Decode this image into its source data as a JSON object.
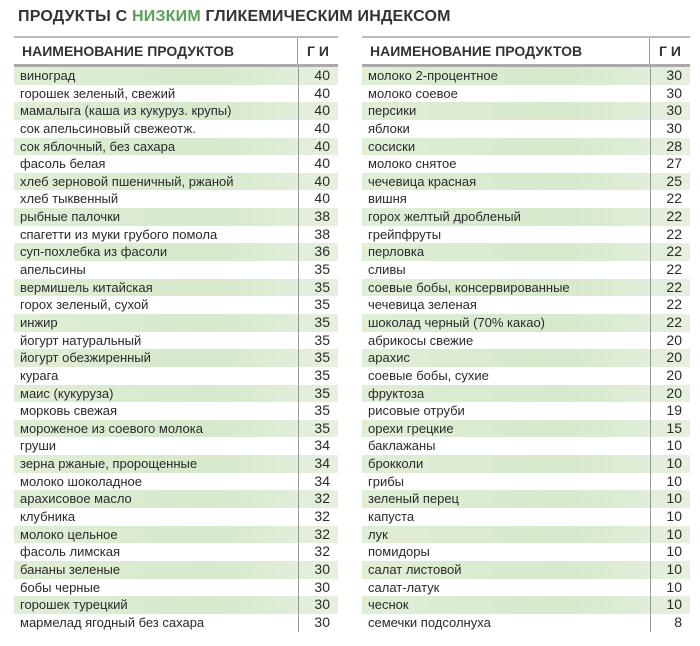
{
  "title": {
    "part1": "ПРОДУКТЫ С ",
    "highlight": "НИЗКИМ",
    "part2": " ГЛИКЕМИЧЕСКИМ ИНДЕКСОМ"
  },
  "colors": {
    "highlight": "#5aa05a",
    "row_tint": "#d6e9cb"
  },
  "tables": [
    {
      "header": {
        "name": "НАИМЕНОВАНИЕ ПРОДУКТОВ",
        "gi": "Г И"
      },
      "rows": [
        {
          "name": "виноград",
          "gi": "40"
        },
        {
          "name": "горошек зеленый, свежий",
          "gi": "40"
        },
        {
          "name": "мамалыга (каша из кукуруз. крупы)",
          "gi": "40"
        },
        {
          "name": "сок апельсиновый свежеотж.",
          "gi": "40"
        },
        {
          "name": "сок яблочный, без сахара",
          "gi": "40"
        },
        {
          "name": "фасоль белая",
          "gi": "40"
        },
        {
          "name": "хлеб зерновой пшеничный, ржаной",
          "gi": "40"
        },
        {
          "name": "хлеб тыквенный",
          "gi": "40"
        },
        {
          "name": "рыбные палочки",
          "gi": "38"
        },
        {
          "name": "спагетти из муки грубого помола",
          "gi": "38"
        },
        {
          "name": "суп-похлебка из фасоли",
          "gi": "36"
        },
        {
          "name": "апельсины",
          "gi": "35"
        },
        {
          "name": "вермишель китайская",
          "gi": "35"
        },
        {
          "name": "горох зеленый, сухой",
          "gi": "35"
        },
        {
          "name": "инжир",
          "gi": "35"
        },
        {
          "name": "йогурт натуральный",
          "gi": "35"
        },
        {
          "name": "йогурт обезжиренный",
          "gi": "35"
        },
        {
          "name": "курага",
          "gi": "35"
        },
        {
          "name": "маис (кукуруза)",
          "gi": "35"
        },
        {
          "name": "морковь свежая",
          "gi": "35"
        },
        {
          "name": "мороженое из соевого молока",
          "gi": "35"
        },
        {
          "name": "груши",
          "gi": "34"
        },
        {
          "name": "зерна ржаные, пророщенные",
          "gi": "34"
        },
        {
          "name": "молоко шоколадное",
          "gi": "34"
        },
        {
          "name": "арахисовое масло",
          "gi": "32"
        },
        {
          "name": "клубника",
          "gi": "32"
        },
        {
          "name": "молоко цельное",
          "gi": "32"
        },
        {
          "name": "фасоль лимская",
          "gi": "32"
        },
        {
          "name": "бананы зеленые",
          "gi": "30"
        },
        {
          "name": "бобы черные",
          "gi": "30"
        },
        {
          "name": "горошек турецкий",
          "gi": "30"
        },
        {
          "name": "мармелад ягодный без сахара",
          "gi": "30"
        }
      ]
    },
    {
      "header": {
        "name": "НАИМЕНОВАНИЕ ПРОДУКТОВ",
        "gi": "Г И"
      },
      "rows": [
        {
          "name": "молоко 2-процентное",
          "gi": "30"
        },
        {
          "name": "молоко соевое",
          "gi": "30"
        },
        {
          "name": "персики",
          "gi": "30"
        },
        {
          "name": "яблоки",
          "gi": "30"
        },
        {
          "name": "сосиски",
          "gi": "28"
        },
        {
          "name": "молоко снятое",
          "gi": "27"
        },
        {
          "name": "чечевица красная",
          "gi": "25"
        },
        {
          "name": "вишня",
          "gi": "22"
        },
        {
          "name": "горох желтый дробленый",
          "gi": "22"
        },
        {
          "name": "грейпфруты",
          "gi": "22"
        },
        {
          "name": "перловка",
          "gi": "22"
        },
        {
          "name": "сливы",
          "gi": "22"
        },
        {
          "name": "соевые бобы, консервированные",
          "gi": "22"
        },
        {
          "name": "чечевица зеленая",
          "gi": "22"
        },
        {
          "name": "шоколад черный (70% какао)",
          "gi": "22"
        },
        {
          "name": "абрикосы свежие",
          "gi": "20"
        },
        {
          "name": "арахис",
          "gi": "20"
        },
        {
          "name": "соевые бобы, сухие",
          "gi": "20"
        },
        {
          "name": "фруктоза",
          "gi": "20"
        },
        {
          "name": "рисовые отруби",
          "gi": "19"
        },
        {
          "name": "орехи грецкие",
          "gi": "15"
        },
        {
          "name": "баклажаны",
          "gi": "10"
        },
        {
          "name": "брокколи",
          "gi": "10"
        },
        {
          "name": "грибы",
          "gi": "10"
        },
        {
          "name": "зеленый перец",
          "gi": "10"
        },
        {
          "name": "капуста",
          "gi": "10"
        },
        {
          "name": "лук",
          "gi": "10"
        },
        {
          "name": "помидоры",
          "gi": "10"
        },
        {
          "name": "салат листовой",
          "gi": "10"
        },
        {
          "name": "салат-латук",
          "gi": "10"
        },
        {
          "name": "чеснок",
          "gi": "10"
        },
        {
          "name": "семечки подсолнуха",
          "gi": "8"
        }
      ]
    }
  ]
}
